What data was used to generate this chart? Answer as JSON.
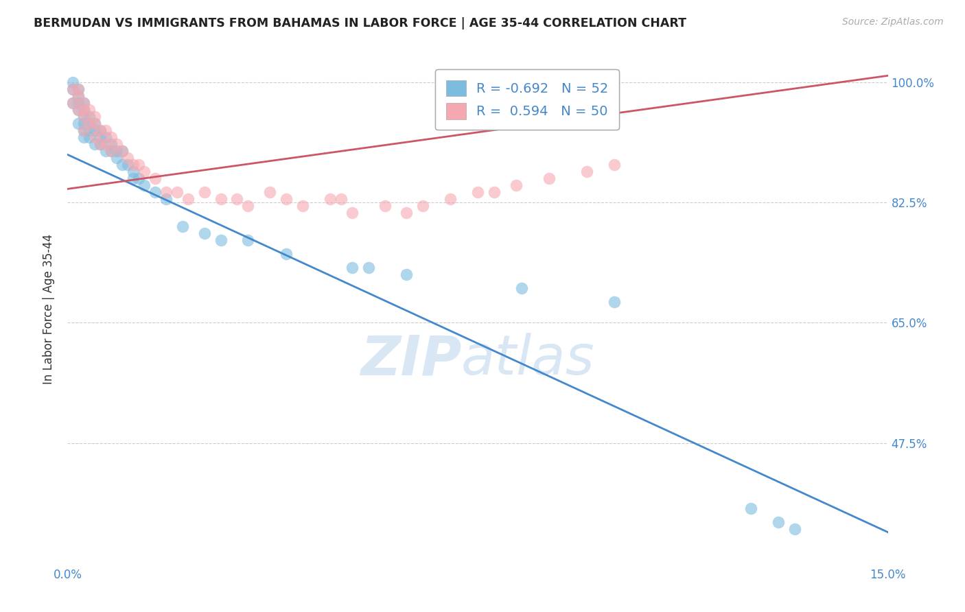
{
  "title": "BERMUDAN VS IMMIGRANTS FROM BAHAMAS IN LABOR FORCE | AGE 35-44 CORRELATION CHART",
  "source": "Source: ZipAtlas.com",
  "ylabel": "In Labor Force | Age 35-44",
  "xlim": [
    0.0,
    0.15
  ],
  "ylim": [
    0.3,
    1.04
  ],
  "yticks": [
    0.475,
    0.65,
    0.825,
    1.0
  ],
  "ytick_labels": [
    "47.5%",
    "65.0%",
    "82.5%",
    "100.0%"
  ],
  "xticks": [
    0.0,
    0.025,
    0.05,
    0.075,
    0.1,
    0.125,
    0.15
  ],
  "xtick_labels": [
    "0.0%",
    "",
    "",
    "",
    "",
    "",
    "15.0%"
  ],
  "bermudans_color": "#7bbcdf",
  "bahamas_color": "#f5a8b0",
  "blue_line_color": "#4488cc",
  "pink_line_color": "#cc5566",
  "R_blue": -0.692,
  "N_blue": 52,
  "R_pink": 0.594,
  "N_pink": 50,
  "grid_color": "#cccccc",
  "background_color": "#ffffff",
  "blue_line_x0": 0.0,
  "blue_line_y0": 0.895,
  "blue_line_x1": 0.15,
  "blue_line_y1": 0.345,
  "pink_line_x0": 0.0,
  "pink_line_y0": 0.845,
  "pink_line_x1": 0.15,
  "pink_line_y1": 1.01,
  "bermudans_x": [
    0.001,
    0.001,
    0.001,
    0.002,
    0.002,
    0.002,
    0.002,
    0.002,
    0.003,
    0.003,
    0.003,
    0.003,
    0.003,
    0.003,
    0.004,
    0.004,
    0.004,
    0.004,
    0.005,
    0.005,
    0.005,
    0.006,
    0.006,
    0.006,
    0.007,
    0.007,
    0.008,
    0.008,
    0.009,
    0.009,
    0.01,
    0.01,
    0.011,
    0.012,
    0.012,
    0.013,
    0.014,
    0.016,
    0.018,
    0.021,
    0.025,
    0.028,
    0.033,
    0.04,
    0.052,
    0.055,
    0.062,
    0.083,
    0.1,
    0.125,
    0.13,
    0.133
  ],
  "bermudans_y": [
    1.0,
    0.99,
    0.97,
    0.99,
    0.98,
    0.97,
    0.96,
    0.94,
    0.97,
    0.96,
    0.95,
    0.94,
    0.93,
    0.92,
    0.95,
    0.94,
    0.93,
    0.92,
    0.94,
    0.93,
    0.91,
    0.93,
    0.92,
    0.91,
    0.92,
    0.9,
    0.91,
    0.9,
    0.9,
    0.89,
    0.9,
    0.88,
    0.88,
    0.87,
    0.86,
    0.86,
    0.85,
    0.84,
    0.83,
    0.79,
    0.78,
    0.77,
    0.77,
    0.75,
    0.73,
    0.73,
    0.72,
    0.7,
    0.68,
    0.38,
    0.36,
    0.35
  ],
  "bahamas_x": [
    0.001,
    0.001,
    0.002,
    0.002,
    0.002,
    0.003,
    0.003,
    0.003,
    0.003,
    0.004,
    0.004,
    0.005,
    0.005,
    0.005,
    0.006,
    0.006,
    0.007,
    0.007,
    0.008,
    0.008,
    0.009,
    0.01,
    0.011,
    0.012,
    0.013,
    0.014,
    0.016,
    0.018,
    0.02,
    0.022,
    0.025,
    0.028,
    0.031,
    0.033,
    0.037,
    0.04,
    0.043,
    0.048,
    0.05,
    0.052,
    0.058,
    0.062,
    0.065,
    0.07,
    0.075,
    0.078,
    0.082,
    0.088,
    0.095,
    0.1
  ],
  "bahamas_y": [
    0.99,
    0.97,
    0.99,
    0.98,
    0.96,
    0.97,
    0.96,
    0.95,
    0.93,
    0.96,
    0.94,
    0.95,
    0.94,
    0.92,
    0.93,
    0.91,
    0.93,
    0.91,
    0.92,
    0.9,
    0.91,
    0.9,
    0.89,
    0.88,
    0.88,
    0.87,
    0.86,
    0.84,
    0.84,
    0.83,
    0.84,
    0.83,
    0.83,
    0.82,
    0.84,
    0.83,
    0.82,
    0.83,
    0.83,
    0.81,
    0.82,
    0.81,
    0.82,
    0.83,
    0.84,
    0.84,
    0.85,
    0.86,
    0.87,
    0.88
  ]
}
